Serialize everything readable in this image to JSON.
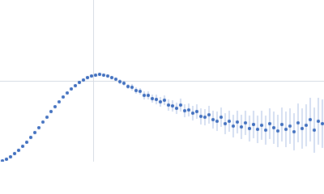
{
  "chart_data": {
    "type": "scatter",
    "color": "#3b6bbd",
    "error_color": "#a9bde3",
    "xlim": [
      0,
      400
    ],
    "ylim": [
      0,
      2
    ],
    "x": [
      3,
      8,
      13,
      18,
      23,
      28,
      33,
      38,
      43,
      48,
      53,
      58,
      63,
      68,
      73,
      78,
      83,
      88,
      93,
      98,
      103,
      108,
      113,
      118,
      123,
      128,
      133,
      138,
      143,
      148,
      153,
      158,
      163,
      168,
      173,
      178,
      183,
      188,
      193,
      198,
      203,
      208,
      213,
      218,
      223,
      228,
      233,
      238,
      243,
      248,
      253,
      258,
      263,
      268,
      273,
      278,
      283,
      288,
      293,
      298,
      303,
      308,
      313,
      318,
      323,
      328,
      333,
      338,
      343,
      348,
      353,
      358,
      363,
      368,
      373,
      378,
      383,
      388,
      393,
      398
    ],
    "values": [
      0.01,
      0.03,
      0.06,
      0.1,
      0.14,
      0.19,
      0.24,
      0.3,
      0.36,
      0.42,
      0.49,
      0.55,
      0.62,
      0.68,
      0.74,
      0.8,
      0.85,
      0.9,
      0.94,
      0.98,
      1.01,
      1.04,
      1.06,
      1.07,
      1.08,
      1.07,
      1.06,
      1.04,
      1.02,
      0.99,
      0.97,
      0.93,
      0.92,
      0.88,
      0.87,
      0.82,
      0.82,
      0.78,
      0.77,
      0.74,
      0.76,
      0.7,
      0.69,
      0.66,
      0.7,
      0.63,
      0.64,
      0.6,
      0.62,
      0.56,
      0.55,
      0.58,
      0.52,
      0.5,
      0.55,
      0.47,
      0.5,
      0.44,
      0.49,
      0.43,
      0.48,
      0.41,
      0.46,
      0.4,
      0.45,
      0.39,
      0.47,
      0.42,
      0.38,
      0.46,
      0.4,
      0.44,
      0.37,
      0.48,
      0.41,
      0.45,
      0.52,
      0.39,
      0.5,
      0.47
    ],
    "errors": [
      0.01,
      0.01,
      0.01,
      0.01,
      0.01,
      0.01,
      0.01,
      0.01,
      0.01,
      0.01,
      0.01,
      0.01,
      0.01,
      0.01,
      0.01,
      0.01,
      0.01,
      0.01,
      0.01,
      0.01,
      0.01,
      0.01,
      0.01,
      0.01,
      0.01,
      0.01,
      0.02,
      0.02,
      0.02,
      0.03,
      0.03,
      0.03,
      0.04,
      0.04,
      0.04,
      0.05,
      0.05,
      0.05,
      0.06,
      0.06,
      0.06,
      0.07,
      0.07,
      0.07,
      0.08,
      0.08,
      0.08,
      0.09,
      0.09,
      0.1,
      0.1,
      0.11,
      0.11,
      0.12,
      0.12,
      0.13,
      0.13,
      0.14,
      0.14,
      0.15,
      0.15,
      0.16,
      0.17,
      0.17,
      0.18,
      0.18,
      0.19,
      0.2,
      0.2,
      0.21,
      0.22,
      0.22,
      0.23,
      0.24,
      0.25,
      0.26,
      0.27,
      0.28,
      0.29,
      0.3
    ]
  }
}
